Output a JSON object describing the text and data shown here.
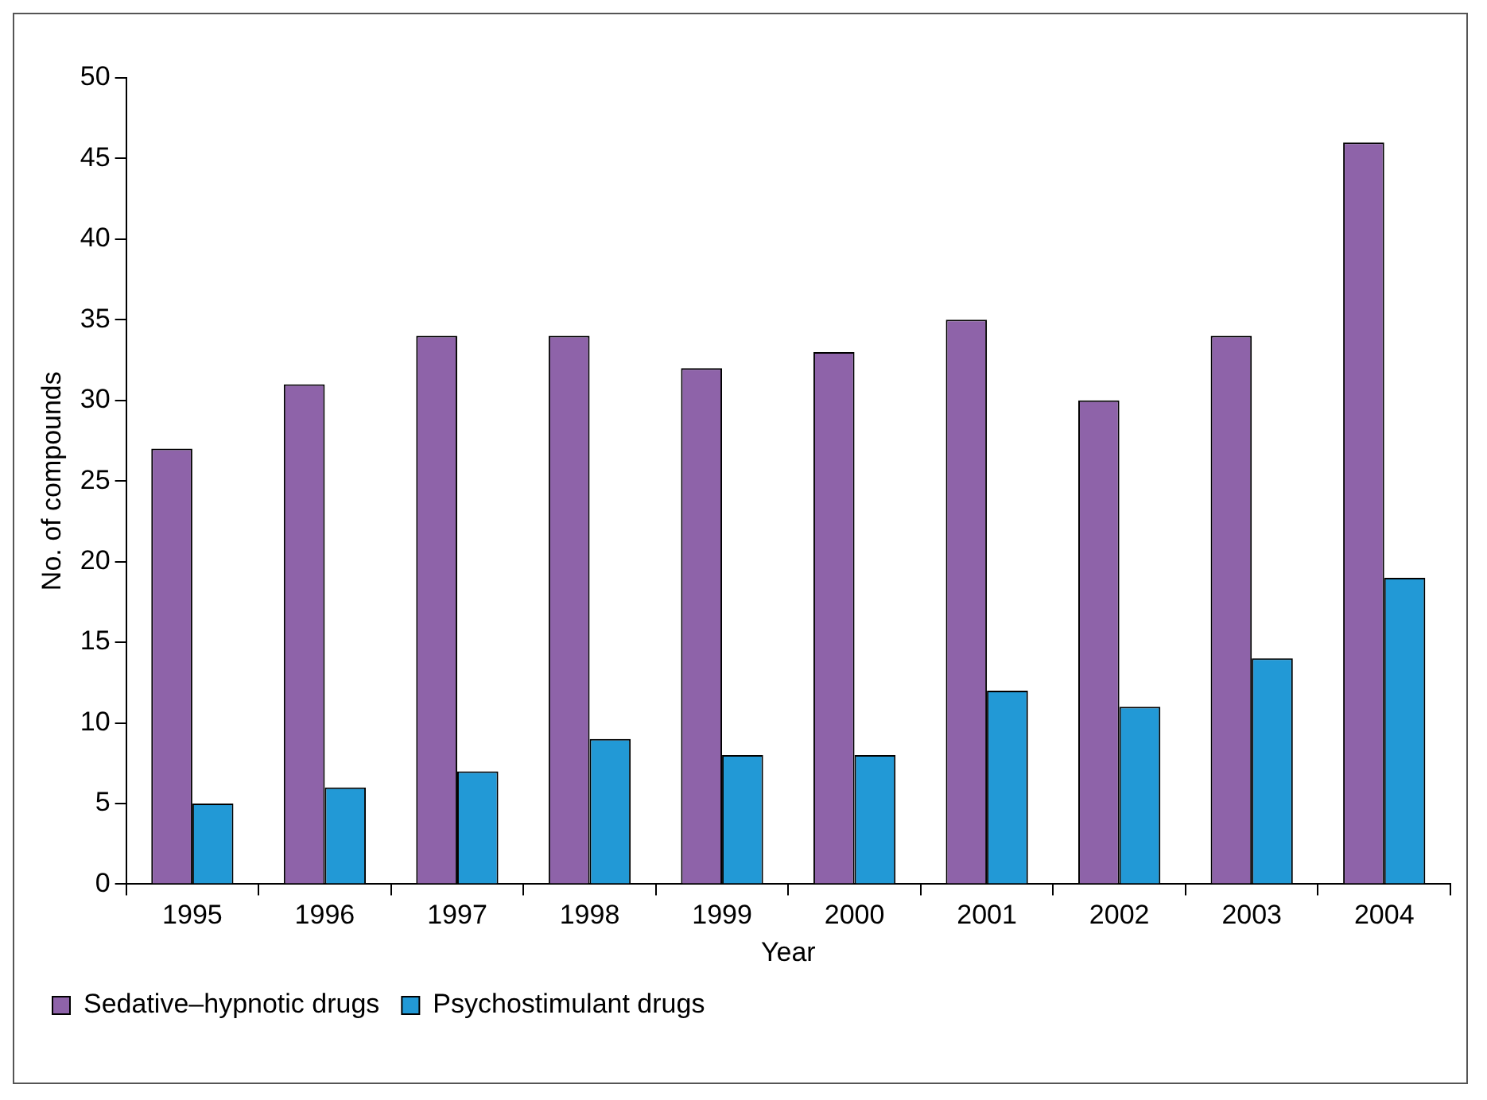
{
  "chart_data": {
    "type": "bar",
    "xlabel": "Year",
    "ylabel": "No. of compounds",
    "categories": [
      "1995",
      "1996",
      "1997",
      "1998",
      "1999",
      "2000",
      "2001",
      "2002",
      "2003",
      "2004"
    ],
    "series": [
      {
        "name": "Sedative–hypnotic drugs",
        "color": "#8e63a9",
        "values": [
          27,
          31,
          34,
          34,
          32,
          33,
          35,
          30,
          34,
          46
        ]
      },
      {
        "name": "Psychostimulant drugs",
        "color": "#2299d6",
        "values": [
          5,
          6,
          7,
          9,
          8,
          8,
          12,
          11,
          14,
          19
        ]
      }
    ],
    "ylim": [
      0,
      50
    ],
    "yticks": [
      0,
      5,
      10,
      15,
      20,
      25,
      30,
      35,
      40,
      45,
      50
    ],
    "grid": false,
    "legend": "bottom left"
  }
}
